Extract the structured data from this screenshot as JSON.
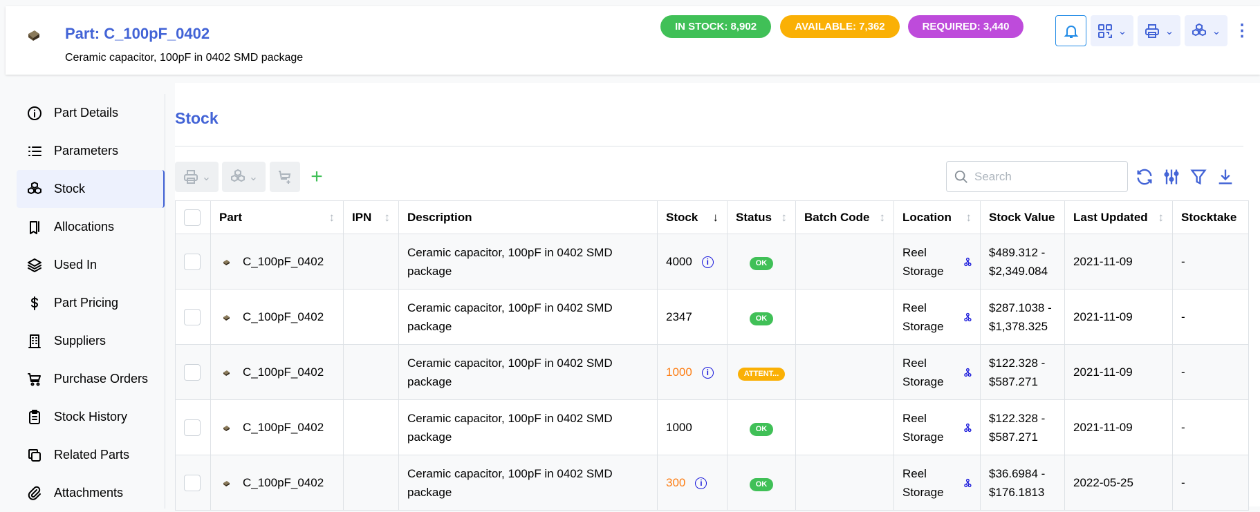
{
  "header": {
    "title": "Part: C_100pF_0402",
    "subtitle": "Ceramic capacitor, 100pF in 0402 SMD package",
    "badges": [
      {
        "label": "IN STOCK: 8,902",
        "color": "#40c057"
      },
      {
        "label": "AVAILABLE: 7,362",
        "color": "#fab005"
      },
      {
        "label": "REQUIRED: 3,440",
        "color": "#be4bdb"
      }
    ]
  },
  "sidebar": {
    "items": [
      {
        "label": "Part Details",
        "icon": "info-icon"
      },
      {
        "label": "Parameters",
        "icon": "list-icon"
      },
      {
        "label": "Stock",
        "icon": "boxes-icon",
        "active": true
      },
      {
        "label": "Allocations",
        "icon": "bookmarks-icon"
      },
      {
        "label": "Used In",
        "icon": "stack-icon"
      },
      {
        "label": "Part Pricing",
        "icon": "dollar-icon"
      },
      {
        "label": "Suppliers",
        "icon": "building-icon"
      },
      {
        "label": "Purchase Orders",
        "icon": "cart-icon"
      },
      {
        "label": "Stock History",
        "icon": "clipboard-icon"
      },
      {
        "label": "Related Parts",
        "icon": "copy-icon"
      },
      {
        "label": "Attachments",
        "icon": "paperclip-icon"
      }
    ]
  },
  "main": {
    "title": "Stock",
    "search_placeholder": "Search",
    "columns": [
      "Part",
      "IPN",
      "Description",
      "Stock",
      "Status",
      "Batch Code",
      "Location",
      "Stock Value",
      "Last Updated",
      "Stocktake"
    ],
    "rows": [
      {
        "part": "C_100pF_0402",
        "ipn": "",
        "description": "Ceramic capacitor, 100pF in 0402 SMD package",
        "stock": "4000",
        "stock_warn": false,
        "info": true,
        "status": "OK",
        "status_color": "#40c057",
        "batch": "",
        "location": "Reel Storage",
        "value": "$489.312 - $2,349.084",
        "updated": "2021-11-09",
        "stocktake": "-"
      },
      {
        "part": "C_100pF_0402",
        "ipn": "",
        "description": "Ceramic capacitor, 100pF in 0402 SMD package",
        "stock": "2347",
        "stock_warn": false,
        "info": false,
        "status": "OK",
        "status_color": "#40c057",
        "batch": "",
        "location": "Reel Storage",
        "value": "$287.1038 - $1,378.325",
        "updated": "2021-11-09",
        "stocktake": "-"
      },
      {
        "part": "C_100pF_0402",
        "ipn": "",
        "description": "Ceramic capacitor, 100pF in 0402 SMD package",
        "stock": "1000",
        "stock_warn": true,
        "info": true,
        "status": "ATTENT...",
        "status_color": "#fab005",
        "batch": "",
        "location": "Reel Storage",
        "value": "$122.328 - $587.271",
        "updated": "2021-11-09",
        "stocktake": "-"
      },
      {
        "part": "C_100pF_0402",
        "ipn": "",
        "description": "Ceramic capacitor, 100pF in 0402 SMD package",
        "stock": "1000",
        "stock_warn": false,
        "info": false,
        "status": "OK",
        "status_color": "#40c057",
        "batch": "",
        "location": "Reel Storage",
        "value": "$122.328 - $587.271",
        "updated": "2021-11-09",
        "stocktake": "-"
      },
      {
        "part": "C_100pF_0402",
        "ipn": "",
        "description": "Ceramic capacitor, 100pF in 0402 SMD package",
        "stock": "300",
        "stock_warn": true,
        "info": true,
        "status": "OK",
        "status_color": "#40c057",
        "batch": "",
        "location": "Reel Storage",
        "value": "$36.6984 - $176.1813",
        "updated": "2022-05-25",
        "stocktake": "-"
      }
    ]
  }
}
